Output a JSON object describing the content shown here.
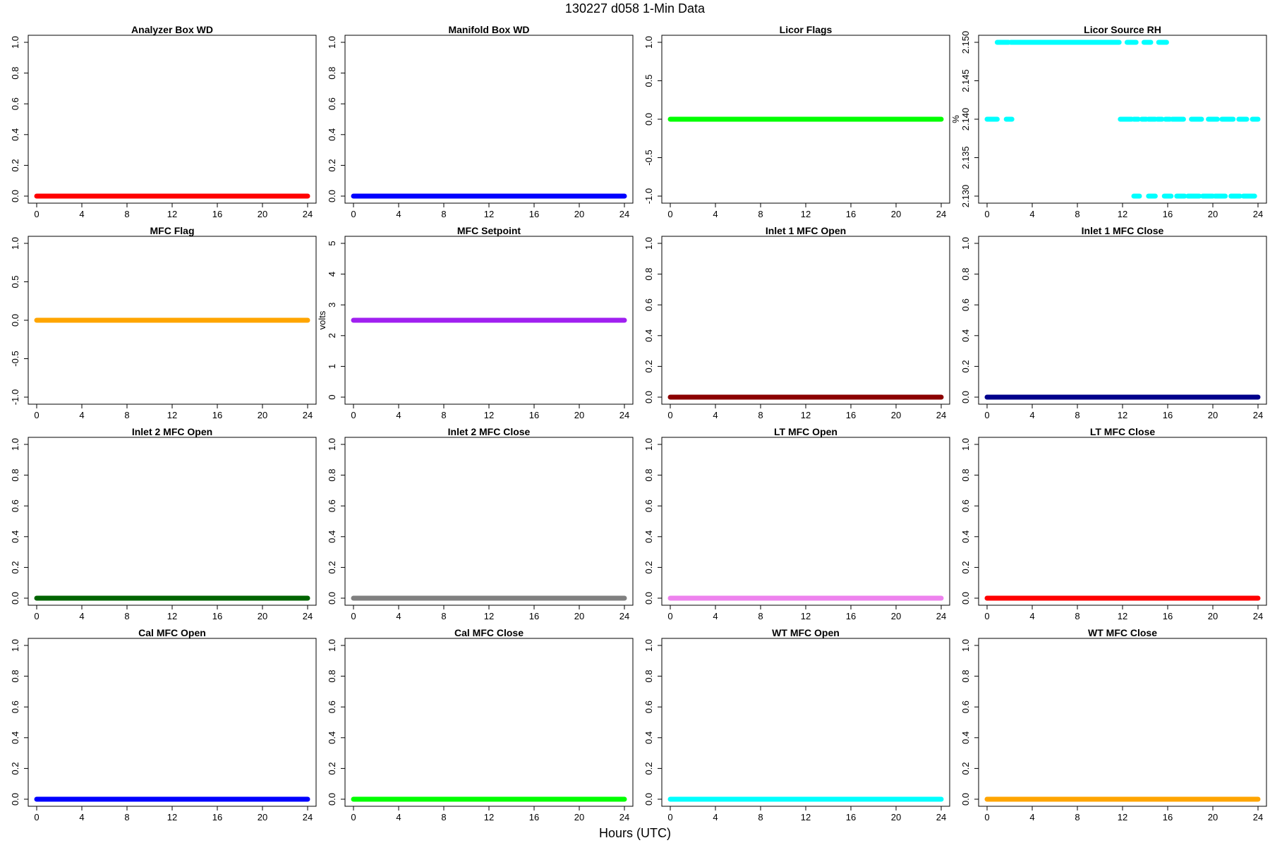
{
  "figure": {
    "title": "130227   d058   1-Min Data",
    "xlabel": "Hours (UTC)"
  },
  "chart_data": [
    {
      "type": "scatter",
      "title": "Analyzer Box WD",
      "ylabel": "",
      "color": "#ff0000",
      "xlim": [
        0,
        24
      ],
      "ylim": [
        0,
        1
      ],
      "x_ticks": [
        "0",
        "4",
        "8",
        "12",
        "16",
        "20",
        "24"
      ],
      "y_ticks": [
        "0.0",
        "0.2",
        "0.4",
        "0.6",
        "0.8",
        "1.0"
      ],
      "segments": [
        {
          "x_start": 0,
          "x_end": 24,
          "y": 0
        }
      ]
    },
    {
      "type": "scatter",
      "title": "Manifold Box WD",
      "ylabel": "",
      "color": "#0000ff",
      "xlim": [
        0,
        24
      ],
      "ylim": [
        0,
        1
      ],
      "x_ticks": [
        "0",
        "4",
        "8",
        "12",
        "16",
        "20",
        "24"
      ],
      "y_ticks": [
        "0.0",
        "0.2",
        "0.4",
        "0.6",
        "0.8",
        "1.0"
      ],
      "segments": [
        {
          "x_start": 0,
          "x_end": 24,
          "y": 0
        }
      ]
    },
    {
      "type": "scatter",
      "title": "Licor Flags",
      "ylabel": "",
      "color": "#00ff00",
      "xlim": [
        0,
        24
      ],
      "ylim": [
        -1,
        1
      ],
      "x_ticks": [
        "0",
        "4",
        "8",
        "12",
        "16",
        "20",
        "24"
      ],
      "y_ticks": [
        "-1.0",
        "-0.5",
        "0.0",
        "0.5",
        "1.0"
      ],
      "segments": [
        {
          "x_start": 0,
          "x_end": 24,
          "y": 0
        }
      ]
    },
    {
      "type": "scatter",
      "title": "Licor Source RH",
      "ylabel": "%",
      "color": "#00ffff",
      "xlim": [
        0,
        24
      ],
      "ylim": [
        2.13,
        2.15
      ],
      "x_ticks": [
        "0",
        "4",
        "8",
        "12",
        "16",
        "20",
        "24"
      ],
      "y_ticks": [
        "2.130",
        "2.135",
        "2.140",
        "2.145",
        "2.150"
      ],
      "segments": [
        {
          "x_start": 0.0,
          "x_end": 0.9,
          "y": 2.14
        },
        {
          "x_start": 1.7,
          "x_end": 2.2,
          "y": 2.14
        },
        {
          "x_start": 0.9,
          "x_end": 1.9,
          "y": 2.15
        },
        {
          "x_start": 2.1,
          "x_end": 11.7,
          "y": 2.15
        },
        {
          "x_start": 12.4,
          "x_end": 13.2,
          "y": 2.15
        },
        {
          "x_start": 13.9,
          "x_end": 14.5,
          "y": 2.15
        },
        {
          "x_start": 15.2,
          "x_end": 15.9,
          "y": 2.15
        },
        {
          "x_start": 11.8,
          "x_end": 12.8,
          "y": 2.14
        },
        {
          "x_start": 13.0,
          "x_end": 13.4,
          "y": 2.14
        },
        {
          "x_start": 13.7,
          "x_end": 14.1,
          "y": 2.14
        },
        {
          "x_start": 14.3,
          "x_end": 14.9,
          "y": 2.14
        },
        {
          "x_start": 15.1,
          "x_end": 15.5,
          "y": 2.14
        },
        {
          "x_start": 15.8,
          "x_end": 16.2,
          "y": 2.14
        },
        {
          "x_start": 16.4,
          "x_end": 17.4,
          "y": 2.14
        },
        {
          "x_start": 18.1,
          "x_end": 19.0,
          "y": 2.14
        },
        {
          "x_start": 19.6,
          "x_end": 20.4,
          "y": 2.14
        },
        {
          "x_start": 20.8,
          "x_end": 21.8,
          "y": 2.14
        },
        {
          "x_start": 22.3,
          "x_end": 23.0,
          "y": 2.14
        },
        {
          "x_start": 23.5,
          "x_end": 24.0,
          "y": 2.14
        },
        {
          "x_start": 13.0,
          "x_end": 13.5,
          "y": 2.13
        },
        {
          "x_start": 14.3,
          "x_end": 14.9,
          "y": 2.13
        },
        {
          "x_start": 15.7,
          "x_end": 16.3,
          "y": 2.13
        },
        {
          "x_start": 16.8,
          "x_end": 17.5,
          "y": 2.13
        },
        {
          "x_start": 17.8,
          "x_end": 18.8,
          "y": 2.13
        },
        {
          "x_start": 19.1,
          "x_end": 20.0,
          "y": 2.13
        },
        {
          "x_start": 20.2,
          "x_end": 21.1,
          "y": 2.13
        },
        {
          "x_start": 21.6,
          "x_end": 22.4,
          "y": 2.13
        },
        {
          "x_start": 22.7,
          "x_end": 23.7,
          "y": 2.13
        }
      ]
    },
    {
      "type": "scatter",
      "title": "MFC Flag",
      "ylabel": "",
      "color": "#ffa500",
      "xlim": [
        0,
        24
      ],
      "ylim": [
        -1,
        1
      ],
      "x_ticks": [
        "0",
        "4",
        "8",
        "12",
        "16",
        "20",
        "24"
      ],
      "y_ticks": [
        "-1.0",
        "-0.5",
        "0.0",
        "0.5",
        "1.0"
      ],
      "segments": [
        {
          "x_start": 0,
          "x_end": 24,
          "y": 0
        }
      ]
    },
    {
      "type": "scatter",
      "title": "MFC Setpoint",
      "ylabel": "volts",
      "color": "#a020f0",
      "xlim": [
        0,
        24
      ],
      "ylim": [
        0,
        5
      ],
      "x_ticks": [
        "0",
        "4",
        "8",
        "12",
        "16",
        "20",
        "24"
      ],
      "y_ticks": [
        "0",
        "1",
        "2",
        "3",
        "4",
        "5"
      ],
      "segments": [
        {
          "x_start": 0,
          "x_end": 24,
          "y": 2.5
        }
      ]
    },
    {
      "type": "scatter",
      "title": "Inlet 1 MFC Open",
      "ylabel": "",
      "color": "#8b0000",
      "xlim": [
        0,
        24
      ],
      "ylim": [
        0,
        1
      ],
      "x_ticks": [
        "0",
        "4",
        "8",
        "12",
        "16",
        "20",
        "24"
      ],
      "y_ticks": [
        "0.0",
        "0.2",
        "0.4",
        "0.6",
        "0.8",
        "1.0"
      ],
      "segments": [
        {
          "x_start": 0,
          "x_end": 24,
          "y": 0
        }
      ]
    },
    {
      "type": "scatter",
      "title": "Inlet 1 MFC Close",
      "ylabel": "",
      "color": "#00008b",
      "xlim": [
        0,
        24
      ],
      "ylim": [
        0,
        1
      ],
      "x_ticks": [
        "0",
        "4",
        "8",
        "12",
        "16",
        "20",
        "24"
      ],
      "y_ticks": [
        "0.0",
        "0.2",
        "0.4",
        "0.6",
        "0.8",
        "1.0"
      ],
      "segments": [
        {
          "x_start": 0,
          "x_end": 24,
          "y": 0
        }
      ]
    },
    {
      "type": "scatter",
      "title": "Inlet 2 MFC Open",
      "ylabel": "",
      "color": "#006400",
      "xlim": [
        0,
        24
      ],
      "ylim": [
        0,
        1
      ],
      "x_ticks": [
        "0",
        "4",
        "8",
        "12",
        "16",
        "20",
        "24"
      ],
      "y_ticks": [
        "0.0",
        "0.2",
        "0.4",
        "0.6",
        "0.8",
        "1.0"
      ],
      "segments": [
        {
          "x_start": 0,
          "x_end": 24,
          "y": 0
        }
      ]
    },
    {
      "type": "scatter",
      "title": "Inlet 2 MFC Close",
      "ylabel": "",
      "color": "#808080",
      "xlim": [
        0,
        24
      ],
      "ylim": [
        0,
        1
      ],
      "x_ticks": [
        "0",
        "4",
        "8",
        "12",
        "16",
        "20",
        "24"
      ],
      "y_ticks": [
        "0.0",
        "0.2",
        "0.4",
        "0.6",
        "0.8",
        "1.0"
      ],
      "segments": [
        {
          "x_start": 0,
          "x_end": 24,
          "y": 0
        }
      ]
    },
    {
      "type": "scatter",
      "title": "LT MFC Open",
      "ylabel": "",
      "color": "#ee82ee",
      "xlim": [
        0,
        24
      ],
      "ylim": [
        0,
        1
      ],
      "x_ticks": [
        "0",
        "4",
        "8",
        "12",
        "16",
        "20",
        "24"
      ],
      "y_ticks": [
        "0.0",
        "0.2",
        "0.4",
        "0.6",
        "0.8",
        "1.0"
      ],
      "segments": [
        {
          "x_start": 0,
          "x_end": 24,
          "y": 0
        }
      ]
    },
    {
      "type": "scatter",
      "title": "LT MFC Close",
      "ylabel": "",
      "color": "#ff0000",
      "xlim": [
        0,
        24
      ],
      "ylim": [
        0,
        1
      ],
      "x_ticks": [
        "0",
        "4",
        "8",
        "12",
        "16",
        "20",
        "24"
      ],
      "y_ticks": [
        "0.0",
        "0.2",
        "0.4",
        "0.6",
        "0.8",
        "1.0"
      ],
      "segments": [
        {
          "x_start": 0,
          "x_end": 24,
          "y": 0
        }
      ]
    },
    {
      "type": "scatter",
      "title": "Cal MFC Open",
      "ylabel": "",
      "color": "#0000ff",
      "xlim": [
        0,
        24
      ],
      "ylim": [
        0,
        1
      ],
      "x_ticks": [
        "0",
        "4",
        "8",
        "12",
        "16",
        "20",
        "24"
      ],
      "y_ticks": [
        "0.0",
        "0.2",
        "0.4",
        "0.6",
        "0.8",
        "1.0"
      ],
      "segments": [
        {
          "x_start": 0,
          "x_end": 24,
          "y": 0
        }
      ]
    },
    {
      "type": "scatter",
      "title": "Cal MFC Close",
      "ylabel": "",
      "color": "#00ff00",
      "xlim": [
        0,
        24
      ],
      "ylim": [
        0,
        1
      ],
      "x_ticks": [
        "0",
        "4",
        "8",
        "12",
        "16",
        "20",
        "24"
      ],
      "y_ticks": [
        "0.0",
        "0.2",
        "0.4",
        "0.6",
        "0.8",
        "1.0"
      ],
      "segments": [
        {
          "x_start": 0,
          "x_end": 24,
          "y": 0
        }
      ]
    },
    {
      "type": "scatter",
      "title": "WT MFC Open",
      "ylabel": "",
      "color": "#00ffff",
      "xlim": [
        0,
        24
      ],
      "ylim": [
        0,
        1
      ],
      "x_ticks": [
        "0",
        "4",
        "8",
        "12",
        "16",
        "20",
        "24"
      ],
      "y_ticks": [
        "0.0",
        "0.2",
        "0.4",
        "0.6",
        "0.8",
        "1.0"
      ],
      "segments": [
        {
          "x_start": 0,
          "x_end": 24,
          "y": 0
        }
      ]
    },
    {
      "type": "scatter",
      "title": "WT MFC Close",
      "ylabel": "",
      "color": "#ffa500",
      "xlim": [
        0,
        24
      ],
      "ylim": [
        0,
        1
      ],
      "x_ticks": [
        "0",
        "4",
        "8",
        "12",
        "16",
        "20",
        "24"
      ],
      "y_ticks": [
        "0.0",
        "0.2",
        "0.4",
        "0.6",
        "0.8",
        "1.0"
      ],
      "segments": [
        {
          "x_start": 0,
          "x_end": 24,
          "y": 0
        }
      ]
    }
  ]
}
